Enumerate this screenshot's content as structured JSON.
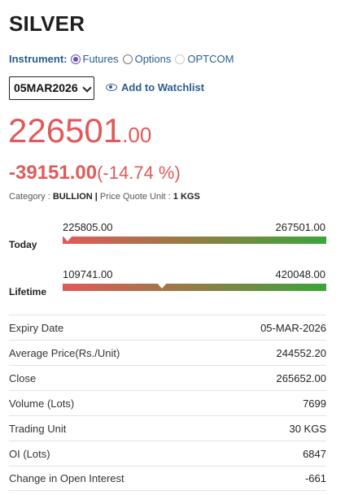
{
  "title": "SILVER",
  "instrument": {
    "label": "Instrument:",
    "options": [
      {
        "label": "Futures",
        "checked": true
      },
      {
        "label": "Options",
        "checked": false
      },
      {
        "label": "OPTCOM",
        "checked": false
      }
    ]
  },
  "expiry_select": {
    "value": "05MAR2026"
  },
  "watchlist": {
    "label": "Add to Watchlist",
    "icon": "eye-icon"
  },
  "price": {
    "whole": "226501",
    "decimal": ".00"
  },
  "change": {
    "abs": "-39151.00",
    "pct": "(-14.74 %)"
  },
  "meta": {
    "category_label": "Category :",
    "category": "BULLION",
    "sep": "|",
    "unit_label": "Price Quote Unit :",
    "unit": "1 KGS"
  },
  "today": {
    "label": "Today",
    "low": "225805.00",
    "high": "267501.00",
    "position": 0.017
  },
  "lifetime": {
    "label": "Lifetime",
    "low": "109741.00",
    "high": "420048.00",
    "position": 0.376
  },
  "details": [
    {
      "label": "Expiry Date",
      "value": "05-MAR-2026"
    },
    {
      "label": "Average Price(Rs./Unit)",
      "value": "244552.20"
    },
    {
      "label": "Close",
      "value": "265652.00"
    },
    {
      "label": "Volume (Lots)",
      "value": "7699"
    },
    {
      "label": "Trading Unit",
      "value": "30 KGS"
    },
    {
      "label": "OI (Lots)",
      "value": "6847"
    },
    {
      "label": "Change in Open Interest",
      "value": "-661"
    }
  ],
  "colors": {
    "negative": "#e05a5a",
    "link": "#2b5d8e",
    "bar_low": "#e05a5a",
    "bar_high": "#3aa53a"
  }
}
